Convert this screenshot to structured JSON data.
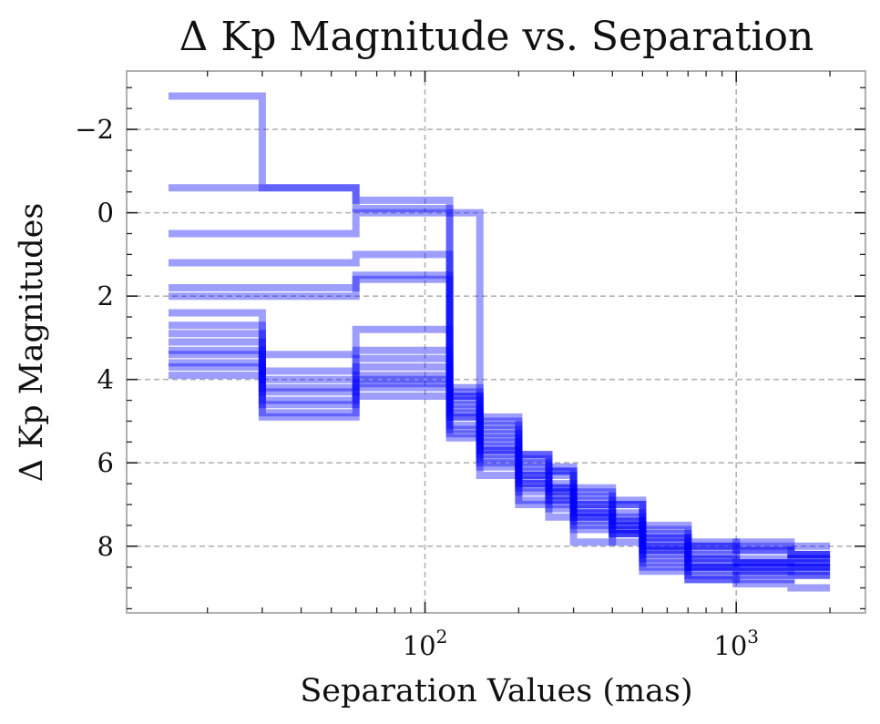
{
  "chart_data": {
    "type": "line",
    "style": "step",
    "title": "Δ Kp Magnitude vs. Separation",
    "xlabel": "Separation Values (mas)",
    "ylabel": "Δ Kp Magnitudes",
    "xscale": "log",
    "xlim": [
      11,
      2600
    ],
    "ylim": [
      9.6,
      -3.4
    ],
    "y_inverted": true,
    "grid": true,
    "grid_style": "dashed",
    "x_ticks": [
      {
        "value": 100,
        "base": "10",
        "exp": "2"
      },
      {
        "value": 1000,
        "base": "10",
        "exp": "3"
      }
    ],
    "y_ticks": [
      {
        "value": -2,
        "label": "−2"
      },
      {
        "value": 0,
        "label": "0"
      },
      {
        "value": 2,
        "label": "2"
      },
      {
        "value": 4,
        "label": "4"
      },
      {
        "value": 6,
        "label": "6"
      },
      {
        "value": 8,
        "label": "8"
      }
    ],
    "line_color": "#0000ff",
    "line_alpha": 0.38,
    "x_edges": [
      15,
      30,
      60,
      120,
      150,
      200,
      250,
      300,
      400,
      500,
      700,
      1000,
      1500,
      2000
    ],
    "series": [
      {
        "values": [
          3.4,
          4.6,
          4.1,
          4.8,
          5.7,
          6.5,
          6.8,
          7.3,
          7.6,
          8.1,
          8.5,
          8.5,
          8.5
        ]
      },
      {
        "values": [
          3.1,
          4.3,
          3.7,
          4.6,
          5.4,
          6.1,
          6.5,
          7.1,
          7.4,
          7.9,
          8.2,
          8.3,
          8.3
        ]
      },
      {
        "values": [
          3.7,
          4.9,
          4.4,
          5.1,
          6.0,
          6.9,
          7.1,
          7.6,
          7.9,
          8.5,
          8.8,
          8.9,
          9.0
        ]
      },
      {
        "values": [
          2.9,
          4.0,
          3.5,
          4.4,
          5.2,
          6.0,
          6.3,
          6.9,
          7.2,
          7.8,
          8.1,
          8.0,
          8.2
        ]
      },
      {
        "values": [
          1.8,
          1.8,
          1.5,
          4.3,
          5.3,
          6.2,
          6.6,
          7.0,
          7.3,
          7.8,
          8.3,
          8.4,
          8.4
        ]
      },
      {
        "values": [
          0.5,
          0.5,
          0.0,
          0.0,
          5.0,
          5.8,
          6.2,
          6.8,
          7.0,
          7.7,
          8.0,
          7.9,
          8.0
        ]
      },
      {
        "values": [
          -0.6,
          -0.6,
          -0.3,
          5.4,
          6.3,
          7.0,
          7.3,
          7.5,
          7.7,
          8.2,
          8.6,
          8.6,
          8.6
        ]
      },
      {
        "values": [
          1.2,
          1.2,
          1.0,
          4.5,
          5.8,
          6.5,
          6.9,
          7.4,
          7.7,
          8.6,
          8.8,
          8.7,
          8.7
        ]
      },
      {
        "values": [
          2.0,
          2.0,
          1.6,
          4.9,
          5.5,
          6.3,
          6.7,
          7.2,
          7.5,
          8.3,
          8.5,
          8.5,
          8.5
        ]
      },
      {
        "values": [
          2.4,
          3.4,
          2.8,
          4.2,
          4.9,
          5.9,
          6.1,
          6.7,
          7.0,
          7.6,
          7.9,
          8.1,
          8.2
        ]
      },
      {
        "values": [
          3.3,
          4.5,
          3.9,
          4.7,
          5.6,
          6.4,
          6.7,
          7.2,
          7.5,
          8.0,
          8.4,
          8.4,
          8.4
        ]
      },
      {
        "values": [
          3.9,
          4.8,
          4.2,
          5.2,
          6.1,
          6.7,
          7.0,
          7.9,
          7.7,
          8.4,
          8.7,
          8.8,
          8.7
        ]
      },
      {
        "values": [
          -2.8,
          -0.6,
          -0.1,
          5.3,
          5.9,
          6.6,
          6.9,
          7.3,
          7.6,
          8.1,
          8.5,
          8.6,
          8.5
        ]
      },
      {
        "values": [
          2.7,
          3.8,
          3.3,
          4.4,
          5.1,
          5.8,
          6.2,
          6.6,
          6.9,
          7.5,
          8.0,
          8.1,
          8.2
        ]
      },
      {
        "values": [
          3.6,
          4.2,
          4.0,
          4.9,
          5.7,
          6.3,
          6.6,
          7.0,
          7.4,
          8.0,
          8.3,
          8.4,
          8.3
        ]
      }
    ]
  }
}
